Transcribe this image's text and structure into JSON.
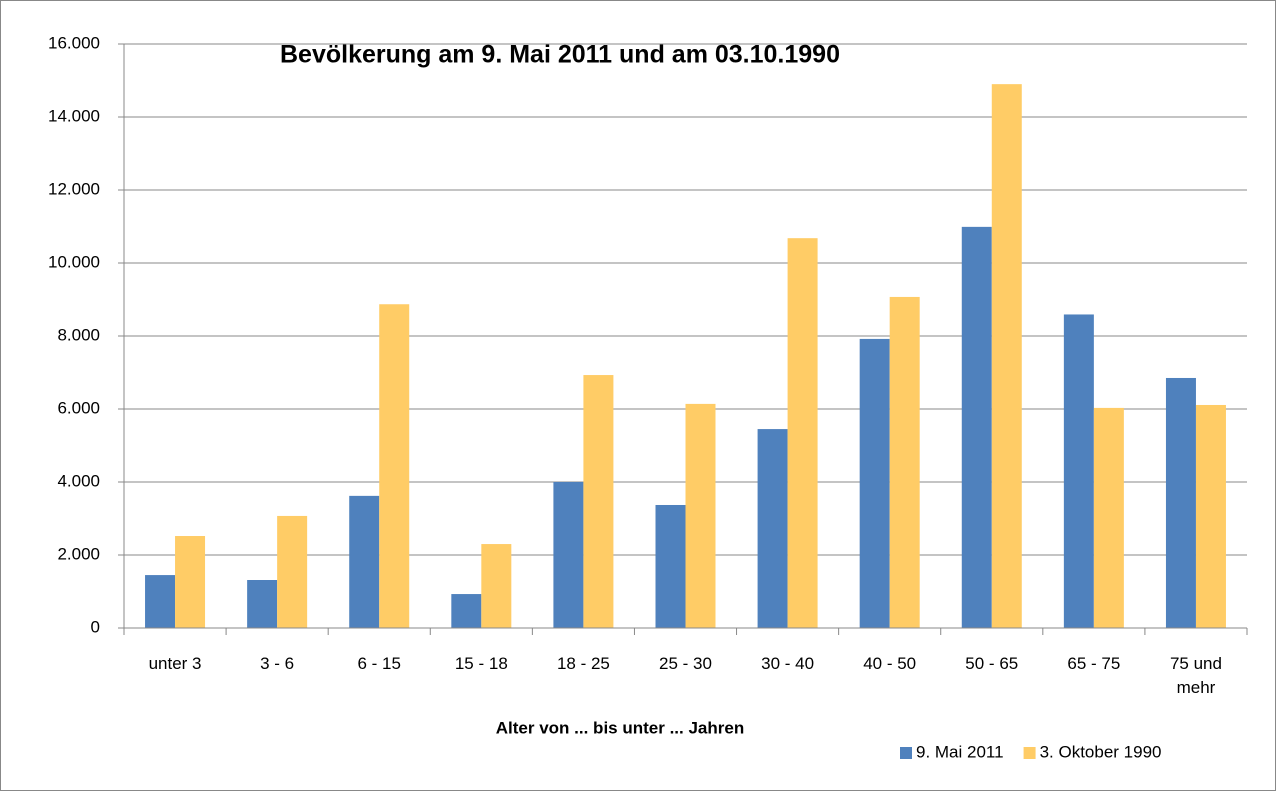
{
  "chart_data": {
    "type": "bar",
    "title": "Bevölkerung am 9. Mai 2011 und am 03.10.1990",
    "x_label": "Alter von ...  bis unter ... Jahren",
    "categories": [
      "unter 3",
      "3 - 6",
      "6 - 15",
      "15 - 18",
      "18 - 25",
      "25 - 30",
      "30 - 40",
      "40 - 50",
      "50 - 65",
      "65 - 75",
      "75 und mehr"
    ],
    "series": [
      {
        "name": "9. Mai 2011",
        "color": "#4f81bd",
        "values": [
          1450,
          1315,
          3620,
          930,
          4000,
          3370,
          5450,
          7920,
          10990,
          8590,
          6850
        ]
      },
      {
        "name": "3. Oktober 1990",
        "color": "#ffcc66",
        "values": [
          2520,
          3070,
          8870,
          2300,
          6930,
          6140,
          10680,
          9070,
          14900,
          6030,
          6110
        ]
      }
    ],
    "ylim": [
      0,
      16000
    ],
    "yticks": [
      0,
      {
        "value": 2000,
        "label": "2.000"
      },
      {
        "value": 4000,
        "label": "4.000"
      },
      {
        "value": 6000,
        "label": "6.000"
      },
      {
        "value": 8000,
        "label": "8.000"
      },
      {
        "value": 10000,
        "label": "10.000"
      },
      {
        "value": 12000,
        "label": "12.000"
      },
      {
        "value": 14000,
        "label": "14.000"
      },
      {
        "value": 16000,
        "label": "16.000"
      }
    ],
    "grid": true,
    "legend": "bottom-right"
  }
}
